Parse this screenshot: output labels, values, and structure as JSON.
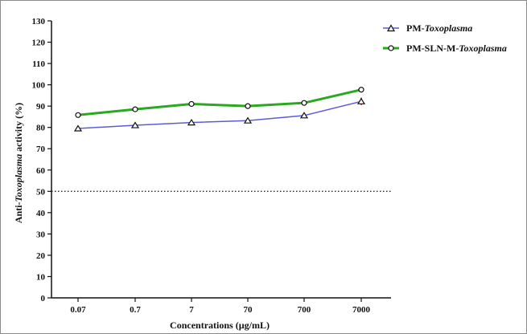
{
  "chart_data": {
    "type": "line",
    "title": "",
    "xlabel": "Concentrations (µg/mL)",
    "ylabel_parts": [
      "Anti-",
      "Toxoplasma",
      " activity (%)"
    ],
    "categories": [
      "0.07",
      "0.7",
      "7",
      "70",
      "700",
      "7000"
    ],
    "ylim": [
      0,
      130
    ],
    "yticks": [
      0,
      10,
      20,
      30,
      40,
      50,
      60,
      70,
      80,
      90,
      100,
      110,
      120,
      130
    ],
    "reference_line": {
      "y": 50,
      "style": "dotted"
    },
    "grid": false,
    "legend_position": "top-right",
    "series": [
      {
        "name": "PM-Toxoplasma",
        "name_parts": [
          "PM-",
          "Toxoplasma"
        ],
        "marker": "triangle",
        "color": "#5b5bd6",
        "values": [
          79.5,
          81,
          82.3,
          83.2,
          85.6,
          92.2
        ],
        "error": [
          0,
          0,
          0,
          0,
          0,
          1.8
        ]
      },
      {
        "name": "PM-SLN-M-Toxoplasma",
        "name_parts": [
          "PM-SLN-M-",
          "Toxoplasma"
        ],
        "marker": "circle",
        "color": "#2aa81f",
        "values": [
          85.8,
          88.5,
          91,
          90,
          91.5,
          97.7
        ],
        "error": [
          0,
          0,
          0,
          0,
          0,
          0
        ]
      }
    ]
  }
}
